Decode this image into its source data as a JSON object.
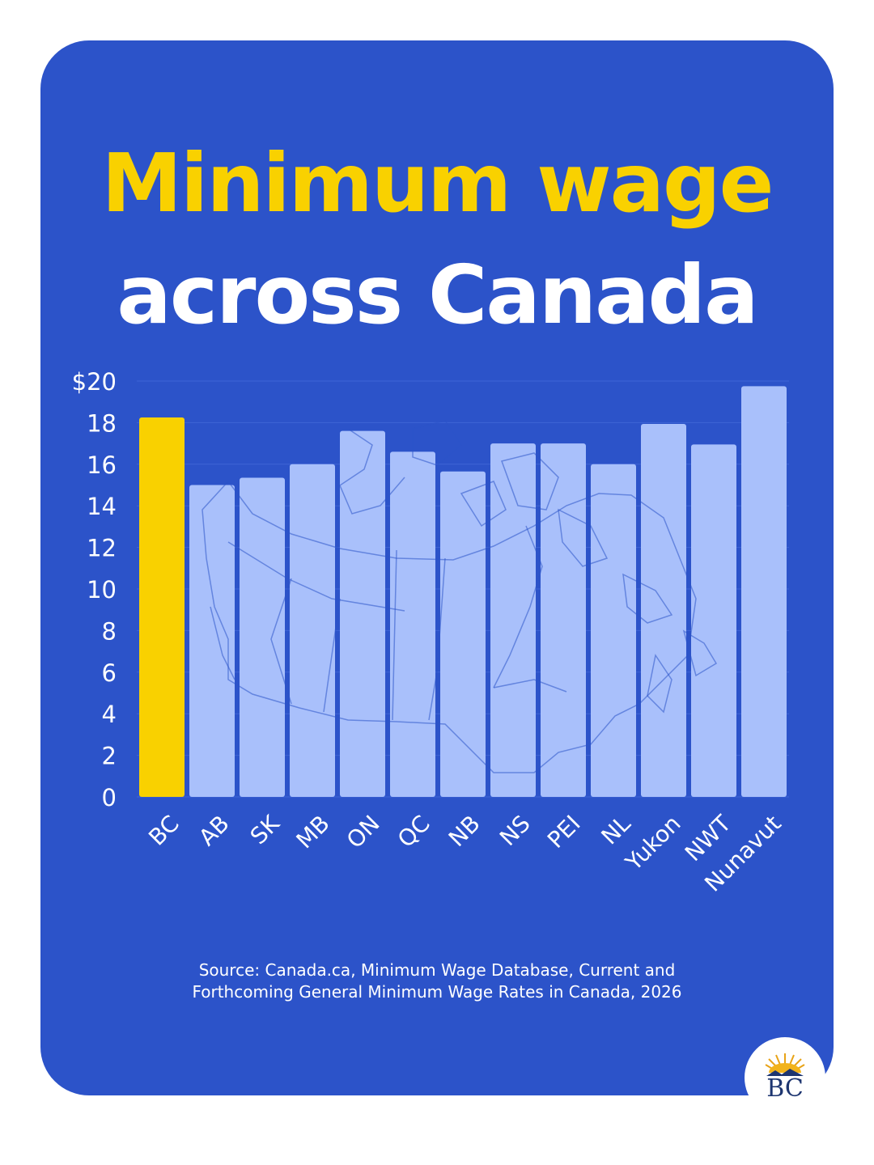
{
  "title_line1": "Minimum wage",
  "title_line2": "across Canada",
  "source_line1": "Source: Canada.ca, Minimum Wage Database, Current and",
  "source_line2": "Forthcoming General Minimum Wage Rates in Canada, 2026",
  "logo": {
    "text": "BC"
  },
  "colors": {
    "background": "#2c53c9",
    "title_accent": "#f9d100",
    "highlight_bar": "#f9d100",
    "bar": "#a9c0fb",
    "text": "#ffffff"
  },
  "chart_data": {
    "type": "bar",
    "categories": [
      "BC",
      "AB",
      "SK",
      "MB",
      "ON",
      "QC",
      "NB",
      "NS",
      "PEI",
      "NL",
      "Yukon",
      "NWT",
      "Nunavut"
    ],
    "values": [
      18.25,
      15.0,
      15.35,
      16.0,
      17.6,
      16.6,
      15.65,
      17.0,
      17.0,
      16.0,
      17.94,
      16.95,
      19.75
    ],
    "highlight": "BC",
    "ylim": [
      0,
      20
    ],
    "yticks": [
      "0",
      "2",
      "4",
      "6",
      "8",
      "10",
      "12",
      "14",
      "16",
      "18",
      "$20"
    ],
    "grid": true,
    "background_image": "canada-map-outline"
  }
}
